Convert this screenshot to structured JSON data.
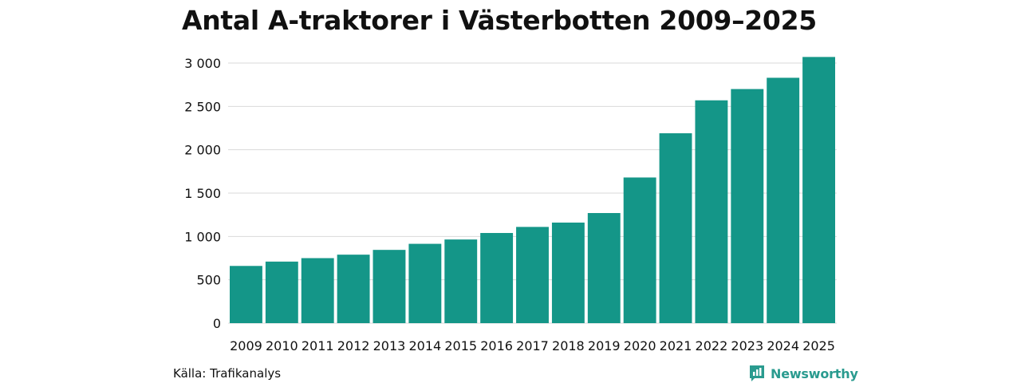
{
  "header": {
    "title": "Antal A-traktorer i Västerbotten 2009–2025"
  },
  "chart_data": {
    "type": "bar",
    "title": "Antal A-traktorer i Västerbotten 2009–2025",
    "categories": [
      "2009",
      "2010",
      "2011",
      "2012",
      "2013",
      "2014",
      "2015",
      "2016",
      "2017",
      "2018",
      "2019",
      "2020",
      "2021",
      "2022",
      "2023",
      "2024",
      "2025"
    ],
    "values": [
      660,
      710,
      750,
      790,
      845,
      915,
      965,
      1040,
      1110,
      1160,
      1270,
      1680,
      2190,
      2570,
      2700,
      2830,
      3070
    ],
    "xlabel": "",
    "ylabel": "",
    "ylim": [
      0,
      3000
    ],
    "yticks": [
      0,
      500,
      1000,
      1500,
      2000,
      2500,
      3000
    ],
    "ytick_labels": [
      "0",
      "500",
      "1 000",
      "1 500",
      "2 000",
      "2 500",
      "3 000"
    ],
    "grid": true,
    "bar_color": "#149688"
  },
  "footer": {
    "source": "Källa: Trafikanalys",
    "brand": "Newsworthy",
    "brand_color": "#2a9b8f"
  }
}
